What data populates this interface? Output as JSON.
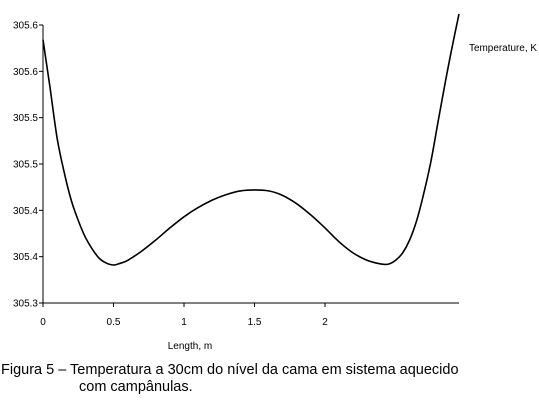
{
  "chart_data": {
    "type": "line",
    "title": "",
    "xlabel": "Length, m",
    "ylabel": "",
    "legend": {
      "label": "Temperature, K",
      "placement": "top-right"
    },
    "xlim": [
      0,
      2.95
    ],
    "ylim": [
      305.3,
      305.6
    ],
    "x_ticks": [
      0,
      0.5,
      1,
      1.5,
      2
    ],
    "x_tick_labels": [
      "0",
      "0.5",
      "1",
      "1.5",
      "2"
    ],
    "y_ticks": [
      305.3,
      305.35,
      305.4,
      305.45,
      305.5,
      305.55,
      305.6
    ],
    "y_tick_labels": [
      "305.3",
      "305.4",
      "305.4",
      "305.5",
      "305.5",
      "305.6",
      "305.6"
    ],
    "grid": false,
    "series": [
      {
        "name": "Temperature, K",
        "color": "#000000",
        "x": [
          0,
          0.05,
          0.1,
          0.15,
          0.2,
          0.25,
          0.3,
          0.35,
          0.4,
          0.45,
          0.5,
          0.55,
          0.6,
          0.7,
          0.8,
          0.9,
          1.0,
          1.1,
          1.2,
          1.3,
          1.4,
          1.5,
          1.6,
          1.7,
          1.8,
          1.9,
          2.0,
          2.1,
          2.2,
          2.3,
          2.4,
          2.45,
          2.5,
          2.55,
          2.6,
          2.65,
          2.7,
          2.75,
          2.8,
          2.85,
          2.9,
          2.95
        ],
        "y": [
          305.584,
          305.532,
          305.478,
          305.441,
          305.411,
          305.389,
          305.371,
          305.358,
          305.348,
          305.343,
          305.341,
          305.343,
          305.346,
          305.356,
          305.368,
          305.381,
          305.393,
          305.403,
          305.411,
          305.417,
          305.421,
          305.422,
          305.421,
          305.416,
          305.407,
          305.395,
          305.381,
          305.366,
          305.354,
          305.346,
          305.342,
          305.342,
          305.346,
          305.354,
          305.368,
          305.389,
          305.418,
          305.452,
          305.494,
          305.536,
          305.575,
          305.612
        ]
      }
    ]
  },
  "caption": {
    "line1": "Figura 5 – Temperatura a 30cm do nível da cama em sistema aquecido",
    "line2": "com campânulas."
  }
}
